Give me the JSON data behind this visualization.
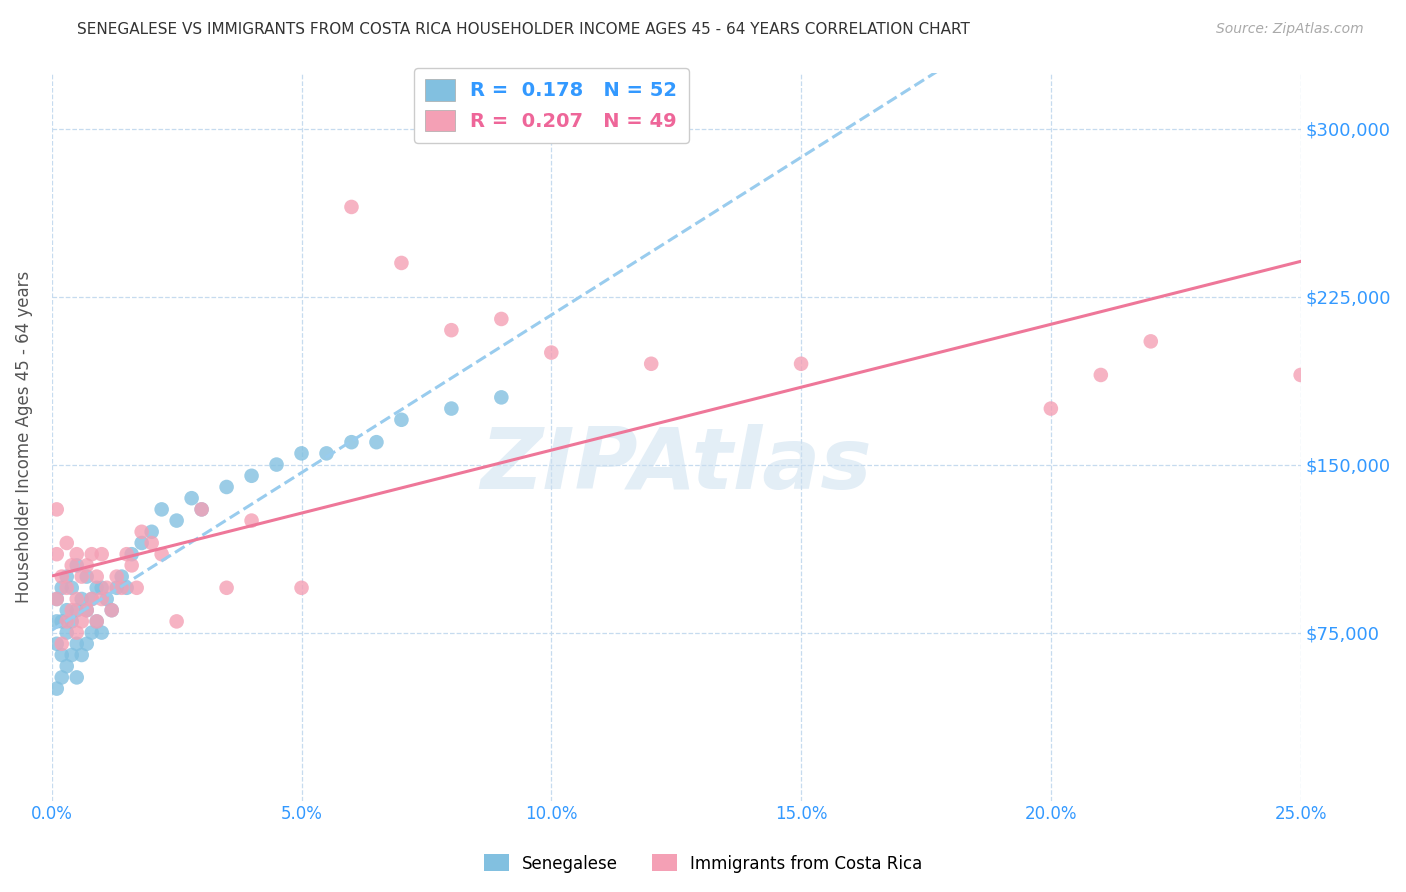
{
  "title": "SENEGALESE VS IMMIGRANTS FROM COSTA RICA HOUSEHOLDER INCOME AGES 45 - 64 YEARS CORRELATION CHART",
  "source": "Source: ZipAtlas.com",
  "ylabel": "Householder Income Ages 45 - 64 years",
  "xlim": [
    0.0,
    0.25
  ],
  "ylim": [
    0,
    325000
  ],
  "yticks": [
    0,
    75000,
    150000,
    225000,
    300000
  ],
  "ytick_labels": [
    "",
    "$75,000",
    "$150,000",
    "$225,000",
    "$300,000"
  ],
  "xticks": [
    0.0,
    0.05,
    0.1,
    0.15,
    0.2,
    0.25
  ],
  "xtick_labels": [
    "0.0%",
    "5.0%",
    "10.0%",
    "15.0%",
    "20.0%",
    "25.0%"
  ],
  "legend_r1": "0.178",
  "legend_n1": "52",
  "legend_r2": "0.207",
  "legend_n2": "49",
  "color_blue": "#82c0e0",
  "color_pink": "#f4a0b5",
  "color_blue_text": "#3399ff",
  "color_pink_text": "#ee6699",
  "trend_blue": "#99ccee",
  "trend_pink": "#ee7799",
  "axis_color": "#3399ff",
  "watermark_color": "#cce0f0",
  "scatter_blue_x": [
    0.001,
    0.001,
    0.001,
    0.001,
    0.002,
    0.002,
    0.002,
    0.002,
    0.003,
    0.003,
    0.003,
    0.003,
    0.004,
    0.004,
    0.004,
    0.005,
    0.005,
    0.005,
    0.005,
    0.006,
    0.006,
    0.007,
    0.007,
    0.007,
    0.008,
    0.008,
    0.009,
    0.009,
    0.01,
    0.01,
    0.011,
    0.012,
    0.013,
    0.014,
    0.015,
    0.016,
    0.018,
    0.02,
    0.022,
    0.025,
    0.028,
    0.03,
    0.035,
    0.04,
    0.045,
    0.05,
    0.055,
    0.06,
    0.065,
    0.07,
    0.08,
    0.09
  ],
  "scatter_blue_y": [
    50000,
    70000,
    80000,
    90000,
    55000,
    65000,
    80000,
    95000,
    60000,
    75000,
    85000,
    100000,
    65000,
    80000,
    95000,
    55000,
    70000,
    85000,
    105000,
    65000,
    90000,
    70000,
    85000,
    100000,
    75000,
    90000,
    80000,
    95000,
    75000,
    95000,
    90000,
    85000,
    95000,
    100000,
    95000,
    110000,
    115000,
    120000,
    130000,
    125000,
    135000,
    130000,
    140000,
    145000,
    150000,
    155000,
    155000,
    160000,
    160000,
    170000,
    175000,
    180000
  ],
  "scatter_pink_x": [
    0.001,
    0.001,
    0.001,
    0.002,
    0.002,
    0.003,
    0.003,
    0.003,
    0.004,
    0.004,
    0.005,
    0.005,
    0.005,
    0.006,
    0.006,
    0.007,
    0.007,
    0.008,
    0.008,
    0.009,
    0.009,
    0.01,
    0.01,
    0.011,
    0.012,
    0.013,
    0.014,
    0.015,
    0.016,
    0.017,
    0.018,
    0.02,
    0.022,
    0.025,
    0.03,
    0.035,
    0.04,
    0.05,
    0.06,
    0.07,
    0.08,
    0.09,
    0.1,
    0.12,
    0.15,
    0.2,
    0.21,
    0.22,
    0.25
  ],
  "scatter_pink_y": [
    90000,
    110000,
    130000,
    70000,
    100000,
    80000,
    95000,
    115000,
    85000,
    105000,
    75000,
    90000,
    110000,
    80000,
    100000,
    85000,
    105000,
    90000,
    110000,
    80000,
    100000,
    90000,
    110000,
    95000,
    85000,
    100000,
    95000,
    110000,
    105000,
    95000,
    120000,
    115000,
    110000,
    80000,
    130000,
    95000,
    125000,
    95000,
    265000,
    240000,
    210000,
    215000,
    200000,
    195000,
    195000,
    175000,
    190000,
    205000,
    190000
  ]
}
